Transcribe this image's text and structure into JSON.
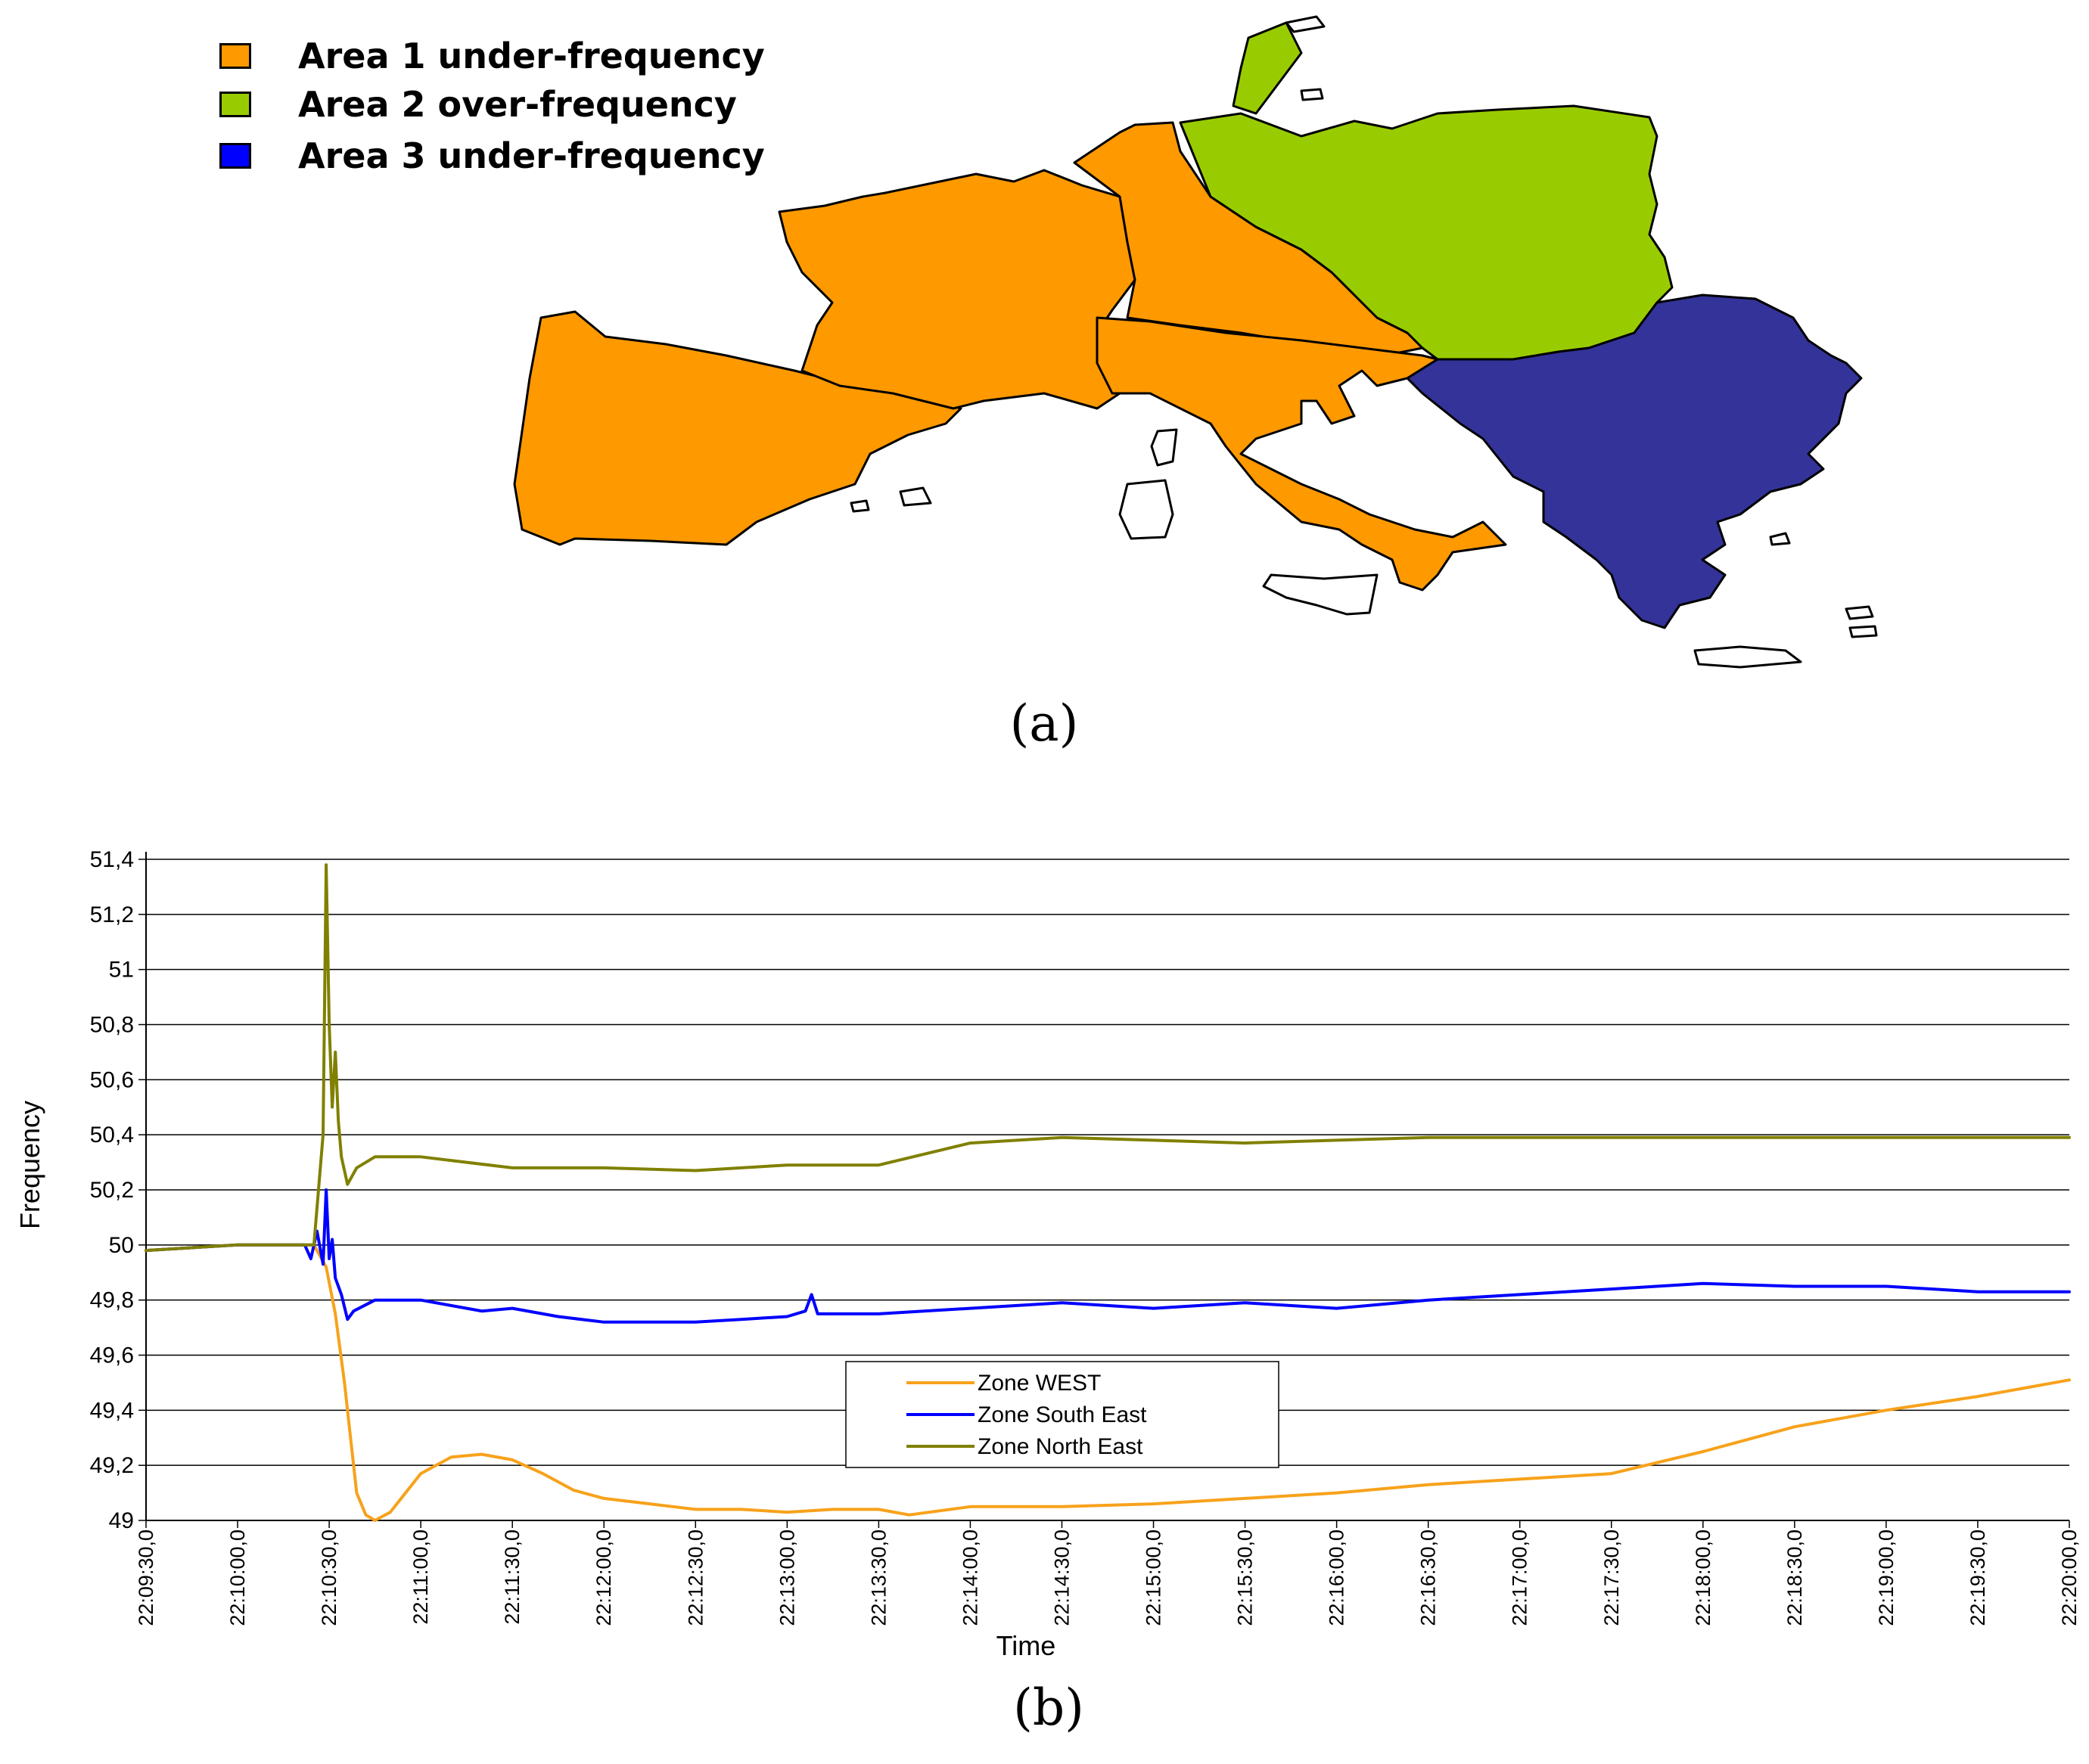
{
  "map": {
    "legend": [
      {
        "label": "Area 1 under-frequency",
        "color": "#FF9900"
      },
      {
        "label": "Area 2 over-frequency",
        "color": "#99CC00"
      },
      {
        "label": "Area 3 under-frequency",
        "color": "#0000FF"
      }
    ],
    "area_colors": {
      "area1": "#FF9900",
      "area2": "#99CC00",
      "area3": "#333399"
    },
    "caption": "(a)"
  },
  "caption_b": "(b)",
  "chart_data": {
    "type": "line",
    "xlabel": "Time",
    "ylabel": "Frequency",
    "ylim": [
      49,
      51.4
    ],
    "yticks": [
      49,
      49.2,
      49.4,
      49.6,
      49.8,
      50,
      50.2,
      50.4,
      50.6,
      50.8,
      51,
      51.2,
      51.4
    ],
    "ytick_labels": [
      "49",
      "49,2",
      "49,4",
      "49,6",
      "49,8",
      "50",
      "50,2",
      "50,4",
      "50,6",
      "50,8",
      "51",
      "51,2",
      "51,4"
    ],
    "xlim": [
      "22:09:30",
      "22:20:00"
    ],
    "xtick_labels": [
      "22:09:30,0",
      "22:10:00,0",
      "22:10:30,0",
      "22:11:00,0",
      "22:11:30,0",
      "22:12:00,0",
      "22:12:30,0",
      "22:13:00,0",
      "22:13:30,0",
      "22:14:00,0",
      "22:14:30,0",
      "22:15:00,0",
      "22:15:30,0",
      "22:16:00,0",
      "22:16:30,0",
      "22:17:00,0",
      "22:17:30,0",
      "22:18:00,0",
      "22:18:30,0",
      "22:19:00,0",
      "22:19:30,0",
      "22:20:00,0"
    ],
    "grid": "horizontal",
    "legend_position": "center",
    "series": [
      {
        "name": "Zone WEST",
        "color": "#F7A21B",
        "points": [
          [
            "22:09:30",
            49.98
          ],
          [
            "22:10:00",
            50.0
          ],
          [
            "22:10:25",
            50.0
          ],
          [
            "22:10:29",
            49.92
          ],
          [
            "22:10:32",
            49.75
          ],
          [
            "22:10:35",
            49.5
          ],
          [
            "22:10:37",
            49.3
          ],
          [
            "22:10:39",
            49.1
          ],
          [
            "22:10:42",
            49.02
          ],
          [
            "22:10:45",
            49.0
          ],
          [
            "22:10:50",
            49.03
          ],
          [
            "22:11:00",
            49.17
          ],
          [
            "22:11:10",
            49.23
          ],
          [
            "22:11:20",
            49.24
          ],
          [
            "22:11:30",
            49.22
          ],
          [
            "22:11:40",
            49.17
          ],
          [
            "22:11:50",
            49.11
          ],
          [
            "22:12:00",
            49.08
          ],
          [
            "22:12:15",
            49.06
          ],
          [
            "22:12:30",
            49.04
          ],
          [
            "22:12:45",
            49.04
          ],
          [
            "22:13:00",
            49.03
          ],
          [
            "22:13:15",
            49.04
          ],
          [
            "22:13:30",
            49.04
          ],
          [
            "22:13:40",
            49.02
          ],
          [
            "22:14:00",
            49.05
          ],
          [
            "22:14:30",
            49.05
          ],
          [
            "22:15:00",
            49.06
          ],
          [
            "22:15:30",
            49.08
          ],
          [
            "22:16:00",
            49.1
          ],
          [
            "22:16:30",
            49.13
          ],
          [
            "22:17:00",
            49.15
          ],
          [
            "22:17:30",
            49.17
          ],
          [
            "22:18:00",
            49.25
          ],
          [
            "22:18:30",
            49.34
          ],
          [
            "22:19:00",
            49.4
          ],
          [
            "22:19:30",
            49.45
          ],
          [
            "22:20:00",
            49.51
          ]
        ]
      },
      {
        "name": "Zone South East",
        "color": "#0000FF",
        "points": [
          [
            "22:09:30",
            49.98
          ],
          [
            "22:10:00",
            50.0
          ],
          [
            "22:10:22",
            50.0
          ],
          [
            "22:10:24",
            49.95
          ],
          [
            "22:10:26",
            50.05
          ],
          [
            "22:10:28",
            49.93
          ],
          [
            "22:10:29",
            50.2
          ],
          [
            "22:10:30",
            49.95
          ],
          [
            "22:10:31",
            50.02
          ],
          [
            "22:10:32",
            49.88
          ],
          [
            "22:10:34",
            49.82
          ],
          [
            "22:10:36",
            49.73
          ],
          [
            "22:10:38",
            49.76
          ],
          [
            "22:10:45",
            49.8
          ],
          [
            "22:11:00",
            49.8
          ],
          [
            "22:11:20",
            49.76
          ],
          [
            "22:11:30",
            49.77
          ],
          [
            "22:11:45",
            49.74
          ],
          [
            "22:12:00",
            49.72
          ],
          [
            "22:12:30",
            49.72
          ],
          [
            "22:12:45",
            49.73
          ],
          [
            "22:13:00",
            49.74
          ],
          [
            "22:13:06",
            49.76
          ],
          [
            "22:13:08",
            49.82
          ],
          [
            "22:13:10",
            49.75
          ],
          [
            "22:13:30",
            49.75
          ],
          [
            "22:14:00",
            49.77
          ],
          [
            "22:14:30",
            49.79
          ],
          [
            "22:15:00",
            49.77
          ],
          [
            "22:15:30",
            49.79
          ],
          [
            "22:16:00",
            49.77
          ],
          [
            "22:16:30",
            49.8
          ],
          [
            "22:17:00",
            49.82
          ],
          [
            "22:17:30",
            49.84
          ],
          [
            "22:18:00",
            49.86
          ],
          [
            "22:18:30",
            49.85
          ],
          [
            "22:19:00",
            49.85
          ],
          [
            "22:19:30",
            49.83
          ],
          [
            "22:20:00",
            49.83
          ]
        ]
      },
      {
        "name": "Zone North East",
        "color": "#808000",
        "points": [
          [
            "22:09:30",
            49.98
          ],
          [
            "22:10:00",
            50.0
          ],
          [
            "22:10:25",
            50.0
          ],
          [
            "22:10:28",
            50.4
          ],
          [
            "22:10:29",
            51.38
          ],
          [
            "22:10:30",
            50.8
          ],
          [
            "22:10:31",
            50.5
          ],
          [
            "22:10:32",
            50.7
          ],
          [
            "22:10:33",
            50.45
          ],
          [
            "22:10:34",
            50.32
          ],
          [
            "22:10:36",
            50.22
          ],
          [
            "22:10:39",
            50.28
          ],
          [
            "22:10:45",
            50.32
          ],
          [
            "22:11:00",
            50.32
          ],
          [
            "22:11:30",
            50.28
          ],
          [
            "22:12:00",
            50.28
          ],
          [
            "22:12:30",
            50.27
          ],
          [
            "22:13:00",
            50.29
          ],
          [
            "22:13:30",
            50.29
          ],
          [
            "22:14:00",
            50.37
          ],
          [
            "22:14:30",
            50.39
          ],
          [
            "22:15:00",
            50.38
          ],
          [
            "22:15:30",
            50.37
          ],
          [
            "22:16:00",
            50.38
          ],
          [
            "22:16:30",
            50.39
          ],
          [
            "22:17:00",
            50.39
          ],
          [
            "22:17:30",
            50.39
          ],
          [
            "22:18:00",
            50.39
          ],
          [
            "22:18:30",
            50.39
          ],
          [
            "22:19:00",
            50.39
          ],
          [
            "22:19:30",
            50.39
          ],
          [
            "22:20:00",
            50.39
          ]
        ]
      }
    ]
  }
}
